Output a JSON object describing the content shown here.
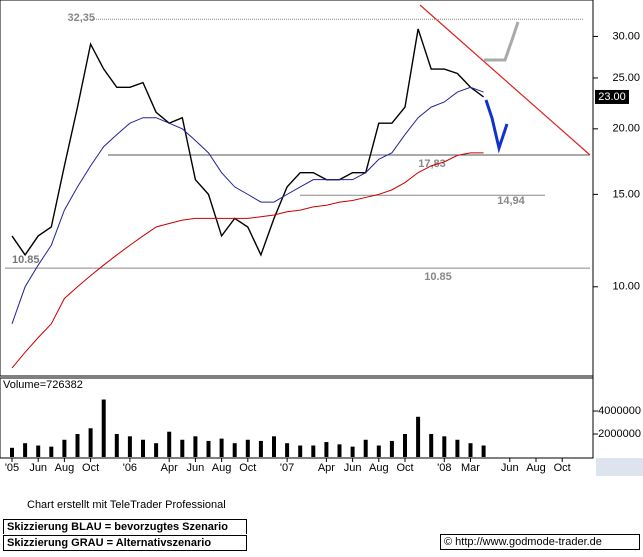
{
  "chart_data": [
    {
      "type": "line",
      "log_scale": true,
      "grid": false,
      "categories": [
        "'05",
        null,
        "Jun",
        null,
        "Aug",
        null,
        "Oct",
        null,
        null,
        "'06",
        null,
        null,
        "Apr",
        null,
        "Jun",
        null,
        "Aug",
        null,
        "Oct",
        null,
        null,
        "'07",
        null,
        null,
        "Apr",
        null,
        "Jun",
        null,
        "Aug",
        null,
        "Oct",
        null,
        null,
        "'08",
        null,
        "Mar",
        null,
        null,
        "Jun",
        null,
        "Aug",
        null,
        "Oct"
      ],
      "series": [
        {
          "color": "#000000",
          "values": [
            12.5,
            11.5,
            12.5,
            13,
            17,
            22,
            29,
            26,
            24,
            24,
            24.5,
            21.5,
            20.5,
            21,
            16,
            15,
            12.5,
            13.5,
            13,
            11.5,
            13.5,
            15.5,
            16.5,
            16.5,
            16,
            16,
            16.5,
            16.5,
            20.5,
            20.5,
            22,
            31,
            26,
            26,
            25.5,
            24,
            23,
            null,
            null,
            null,
            null,
            null,
            null
          ]
        },
        {
          "color": "#22229a",
          "values": [
            8.5,
            10,
            11,
            12,
            14,
            15.5,
            17,
            18.5,
            19.5,
            20.5,
            21,
            21,
            20.5,
            20,
            19,
            18,
            16.5,
            15.5,
            15,
            14.5,
            14.5,
            15,
            15.5,
            16,
            16,
            16,
            16,
            16.5,
            17.5,
            18,
            19.5,
            21,
            22,
            22.5,
            23.5,
            24,
            23.5,
            null,
            null,
            null,
            null,
            null,
            null
          ]
        },
        {
          "color": "#cc0000",
          "values": [
            7,
            7.5,
            8,
            8.5,
            9.5,
            10,
            10.5,
            11,
            11.5,
            12,
            12.5,
            13,
            13.2,
            13.4,
            13.5,
            13.5,
            13.5,
            13.5,
            13.5,
            13.6,
            13.7,
            13.9,
            14,
            14.2,
            14.3,
            14.5,
            14.6,
            14.8,
            15,
            15.3,
            15.8,
            16.5,
            17,
            17.3,
            17.8,
            18,
            18,
            null,
            null,
            null,
            null,
            null,
            null
          ]
        }
      ],
      "ylim": [
        6.76,
        35.2
      ],
      "yticks": [
        {
          "value": 10,
          "label": "10.00"
        },
        {
          "value": 15,
          "label": "15.00"
        },
        {
          "value": 20,
          "label": "20.00"
        },
        {
          "value": 25,
          "label": "25.00"
        },
        {
          "value": 30,
          "label": "30.00"
        }
      ],
      "last_price": {
        "value": 23,
        "label": "23.00"
      },
      "levels": [
        {
          "value": 32.35,
          "label": "32,35"
        },
        {
          "value": 17.83,
          "label": "17,83"
        },
        {
          "value": 14.94,
          "label": "14,94"
        },
        {
          "value": 10.85,
          "label": "10.85"
        }
      ]
    },
    {
      "type": "bar",
      "title": "Volume=726382",
      "color": "#000000",
      "values": [
        800000,
        1200000,
        1000000,
        900000,
        1500000,
        2000000,
        2500000,
        5000000,
        2000000,
        1800000,
        1500000,
        1200000,
        2200000,
        1500000,
        1800000,
        1400000,
        1600000,
        1200000,
        1500000,
        1400000,
        1800000,
        1200000,
        1000000,
        1000000,
        1300000,
        1100000,
        900000,
        1500000,
        1000000,
        1400000,
        2000000,
        3500000,
        2000000,
        1800000,
        1500000,
        1200000,
        1000000,
        null,
        null,
        null,
        null,
        null,
        null
      ],
      "ylim": [
        0,
        6700000
      ],
      "yticks": [
        2000000,
        4000000
      ]
    }
  ],
  "footer": {
    "credit": "Chart erstellt mit TeleTrader Professional",
    "legend_blue": "Skizzierung BLAU = bevorzugtes Szenario",
    "legend_grey": "Skizzierung GRAU = Alternativszenario",
    "copyright": "© http://www.godmode-trader.de"
  }
}
